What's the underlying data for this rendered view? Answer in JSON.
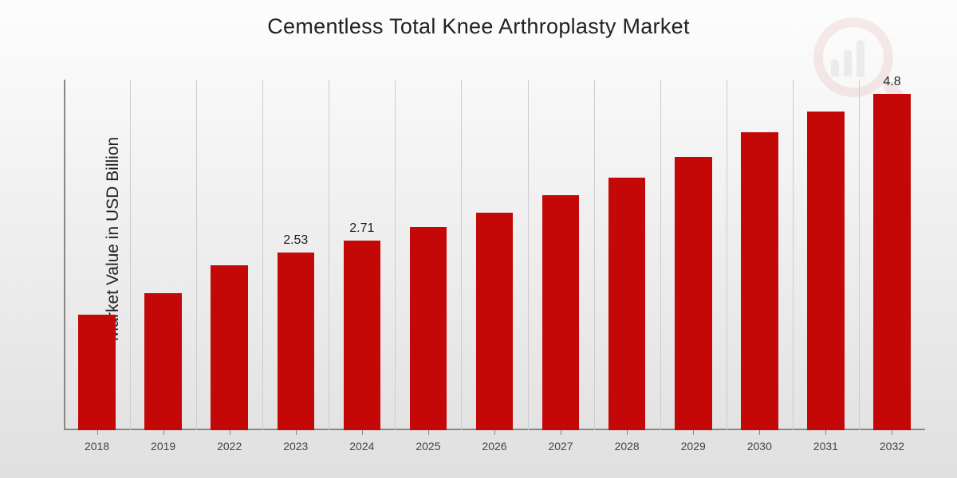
{
  "chart": {
    "type": "bar",
    "title": "Cementless Total Knee Arthroplasty Market",
    "title_fontsize": 27,
    "y_axis_label": "Market Value in USD Billion",
    "y_axis_label_fontsize": 21,
    "background_gradient": {
      "from": "#fdfdfd",
      "mid": "#eeeeee",
      "to": "#e0e0e0"
    },
    "bar_color": "#c40808",
    "grid_color": "#cccccc",
    "axis_color": "#888888",
    "tick_label_color": "#444444",
    "bar_label_color": "#222222",
    "x_tick_fontsize": 14,
    "bar_label_fontsize": 16,
    "bar_width_pct": 56,
    "ylim": [
      0,
      5.0
    ],
    "categories": [
      "2018",
      "2019",
      "2022",
      "2023",
      "2024",
      "2025",
      "2026",
      "2027",
      "2028",
      "2029",
      "2030",
      "2031",
      "2032"
    ],
    "values": [
      1.65,
      1.95,
      2.35,
      2.53,
      2.71,
      2.9,
      3.1,
      3.35,
      3.6,
      3.9,
      4.25,
      4.55,
      4.8
    ],
    "visible_value_labels": {
      "2023": "2.53",
      "2024": "2.71",
      "2032": "4.8"
    },
    "watermark": {
      "ring_color": "#aa0000",
      "opacity": 0.07
    }
  }
}
